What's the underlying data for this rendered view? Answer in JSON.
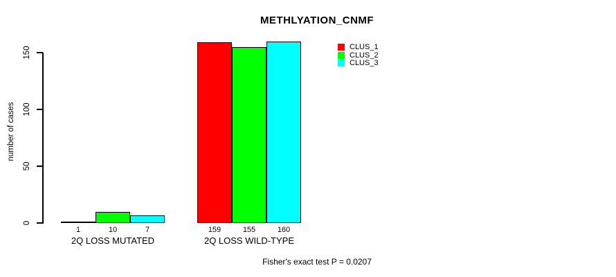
{
  "chart_data": {
    "type": "bar",
    "title": "METHLYATION_CNMF",
    "xlabel": "",
    "ylabel": "number of cases",
    "footer": "Fisher's exact test P = 0.0207",
    "categories": [
      "2Q LOSS MUTATED",
      "2Q LOSS WILD-TYPE"
    ],
    "series": [
      {
        "name": "CLUS_1",
        "color": "#ff0000",
        "values": [
          1,
          159
        ]
      },
      {
        "name": "CLUS_2",
        "color": "#00ff00",
        "values": [
          10,
          155
        ]
      },
      {
        "name": "CLUS_3",
        "color": "#00ffff",
        "values": [
          7,
          160
        ]
      }
    ],
    "bar_value_labels": [
      [
        1,
        10,
        7
      ],
      [
        159,
        155,
        160
      ]
    ],
    "yticks": [
      0,
      50,
      100,
      150
    ],
    "ylim": [
      0,
      165
    ],
    "grid": false,
    "legend": {
      "position": "top-right",
      "entries": [
        "CLUS_1",
        "CLUS_2",
        "CLUS_3"
      ]
    },
    "axis_color": "#000000",
    "background_color": "#ffffff"
  }
}
